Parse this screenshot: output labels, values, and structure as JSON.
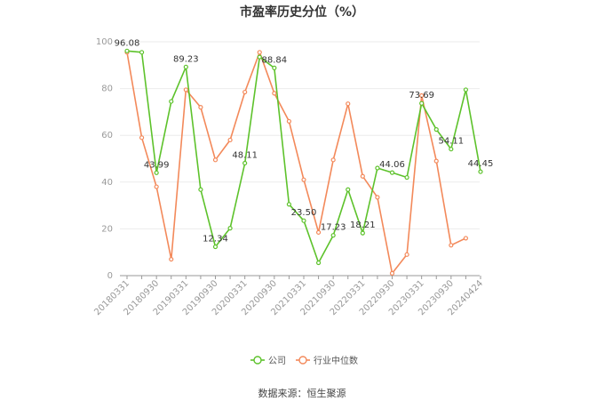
{
  "chart_data": {
    "type": "line",
    "title": "市盈率历史分位（%）",
    "xlabel": "",
    "ylabel": "",
    "ylim": [
      0,
      100
    ],
    "yticks": [
      0,
      20,
      40,
      60,
      80,
      100
    ],
    "x_tick_labels": [
      "20180331",
      "20180930",
      "20190331",
      "20190930",
      "20200331",
      "20200930",
      "20210331",
      "20210930",
      "20220331",
      "20220930",
      "20230331",
      "20230930",
      "20240424"
    ],
    "x_tick_indices": [
      0,
      2,
      4,
      6,
      8,
      10,
      12,
      14,
      16,
      18,
      20,
      22,
      24
    ],
    "num_points": 25,
    "legend_position": "bottom",
    "grid": true,
    "series": [
      {
        "name": "公司",
        "color": "#5dc22b",
        "values": [
          96.08,
          95.5,
          43.99,
          74.5,
          89.23,
          36.8,
          12.34,
          20.3,
          48.11,
          93.5,
          88.84,
          30.5,
          23.5,
          5.5,
          17.23,
          36.8,
          18.21,
          46.0,
          44.06,
          42.0,
          73.69,
          62.5,
          54.11,
          79.5,
          44.45
        ]
      },
      {
        "name": "行业中位数",
        "color": "#f3895a",
        "values": [
          95.5,
          59.0,
          38.0,
          7.0,
          79.5,
          72.0,
          49.5,
          58.0,
          78.5,
          95.5,
          78.0,
          66.0,
          41.0,
          18.5,
          49.5,
          73.5,
          42.5,
          33.5,
          1.0,
          9.0,
          77.0,
          49.0,
          13.0,
          16.0,
          null
        ]
      }
    ],
    "annotations": [
      {
        "series": 0,
        "index": 0,
        "text": "96.08"
      },
      {
        "series": 0,
        "index": 2,
        "text": "43.99"
      },
      {
        "series": 0,
        "index": 4,
        "text": "89.23"
      },
      {
        "series": 0,
        "index": 6,
        "text": "12.34"
      },
      {
        "series": 0,
        "index": 8,
        "text": "48.11"
      },
      {
        "series": 0,
        "index": 10,
        "text": "88.84"
      },
      {
        "series": 0,
        "index": 12,
        "text": "23.50"
      },
      {
        "series": 0,
        "index": 14,
        "text": "17.23"
      },
      {
        "series": 0,
        "index": 16,
        "text": "18.21"
      },
      {
        "series": 0,
        "index": 18,
        "text": "44.06"
      },
      {
        "series": 0,
        "index": 20,
        "text": "73.69"
      },
      {
        "series": 0,
        "index": 22,
        "text": "54.11"
      },
      {
        "series": 0,
        "index": 24,
        "text": "44.45"
      }
    ]
  },
  "source_text": "数据来源：恒生聚源"
}
